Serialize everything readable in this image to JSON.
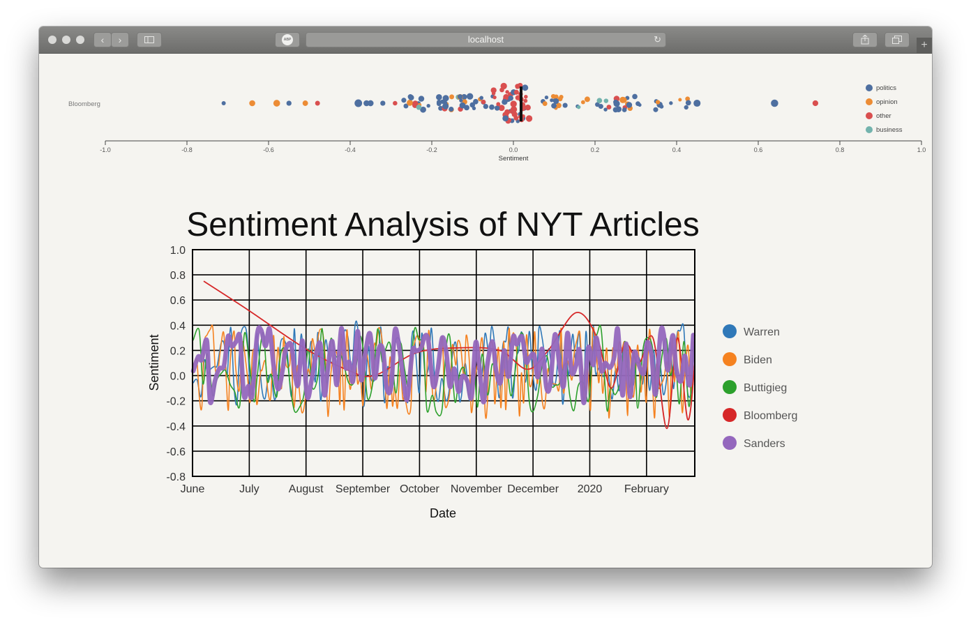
{
  "browser": {
    "url": "localhost",
    "adblock_label": "ABP",
    "icons": [
      "back-icon",
      "forward-icon",
      "sidebar-icon",
      "reload-icon",
      "share-icon",
      "tabs-icon",
      "new-tab-icon"
    ]
  },
  "swarm": {
    "row_label": "Bloomberg",
    "xlabel": "Sentiment",
    "ticks": [
      "-1.0",
      "-0.8",
      "-0.6",
      "-0.4",
      "-0.2",
      "0.0",
      "0.2",
      "0.4",
      "0.6",
      "0.8",
      "1.0"
    ],
    "legend": [
      {
        "label": "politics",
        "color": "#4e6fa0"
      },
      {
        "label": "opinion",
        "color": "#ec8c35"
      },
      {
        "label": "other",
        "color": "#d94f4f"
      },
      {
        "label": "business",
        "color": "#73b3ad"
      }
    ]
  },
  "chart_data": {
    "type": "line",
    "title": "Sentiment Analysis of NYT Articles",
    "xlabel": "Date",
    "ylabel": "Sentiment",
    "ylim": [
      -0.8,
      1.0
    ],
    "yticks": [
      "1.0",
      "0.8",
      "0.6",
      "0.4",
      "0.2",
      "0.0",
      "-0.2",
      "-0.4",
      "-0.6",
      "-0.8"
    ],
    "xticks": [
      "June",
      "July",
      "August",
      "September",
      "October",
      "November",
      "December",
      "2020",
      "February"
    ],
    "grid": true,
    "legend_position": "right",
    "series": [
      {
        "name": "Warren",
        "color": "#2f78b8"
      },
      {
        "name": "Biden",
        "color": "#f58220"
      },
      {
        "name": "Buttigieg",
        "color": "#2ca02c"
      },
      {
        "name": "Bloomberg",
        "color": "#d62728"
      },
      {
        "name": "Sanders",
        "color": "#9467bd"
      }
    ]
  }
}
